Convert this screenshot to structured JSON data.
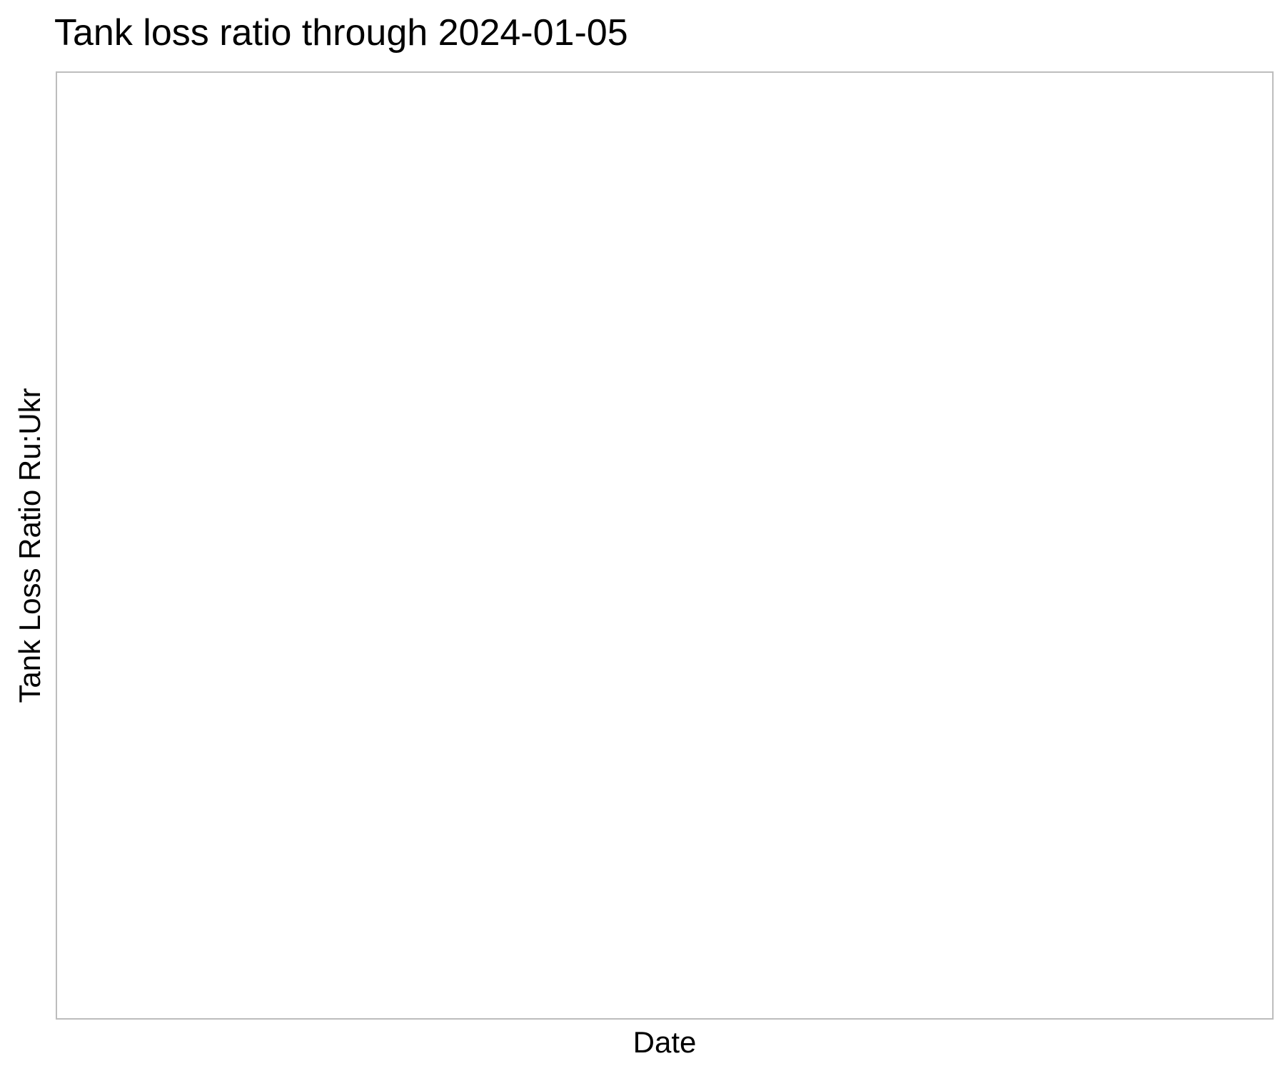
{
  "chart_data": {
    "type": "line",
    "title": "Tank loss ratio through 2024-01-05",
    "xlabel": "Date",
    "ylabel": "Tank Loss Ratio Ru:Ukr",
    "series": [],
    "grid": false,
    "panel_border_color": "#bdbdbd"
  }
}
